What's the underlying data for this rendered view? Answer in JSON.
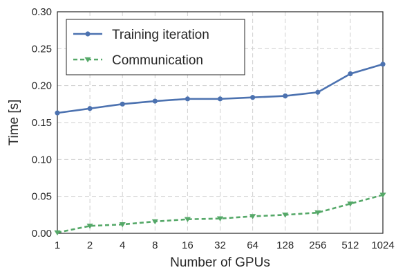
{
  "chart_data": {
    "type": "line",
    "title": "",
    "xlabel": "Number of GPUs",
    "ylabel": "Time [s]",
    "categories": [
      "1",
      "2",
      "4",
      "8",
      "16",
      "32",
      "64",
      "128",
      "256",
      "512",
      "1024"
    ],
    "ylim": [
      0,
      0.3
    ],
    "yticks": [
      "0.00",
      "0.05",
      "0.10",
      "0.15",
      "0.20",
      "0.25",
      "0.30"
    ],
    "grid": true,
    "legend_position": "top-left",
    "series": [
      {
        "name": "Training iteration",
        "color": "#4c72b0",
        "style": "solid",
        "marker": "circle",
        "values": [
          0.163,
          0.169,
          0.175,
          0.179,
          0.182,
          0.182,
          0.184,
          0.186,
          0.191,
          0.216,
          0.229
        ]
      },
      {
        "name": "Communication",
        "color": "#55a868",
        "style": "dashed",
        "marker": "triangle-down",
        "values": [
          0.001,
          0.01,
          0.012,
          0.016,
          0.019,
          0.02,
          0.023,
          0.025,
          0.028,
          0.04,
          0.052
        ]
      }
    ]
  }
}
